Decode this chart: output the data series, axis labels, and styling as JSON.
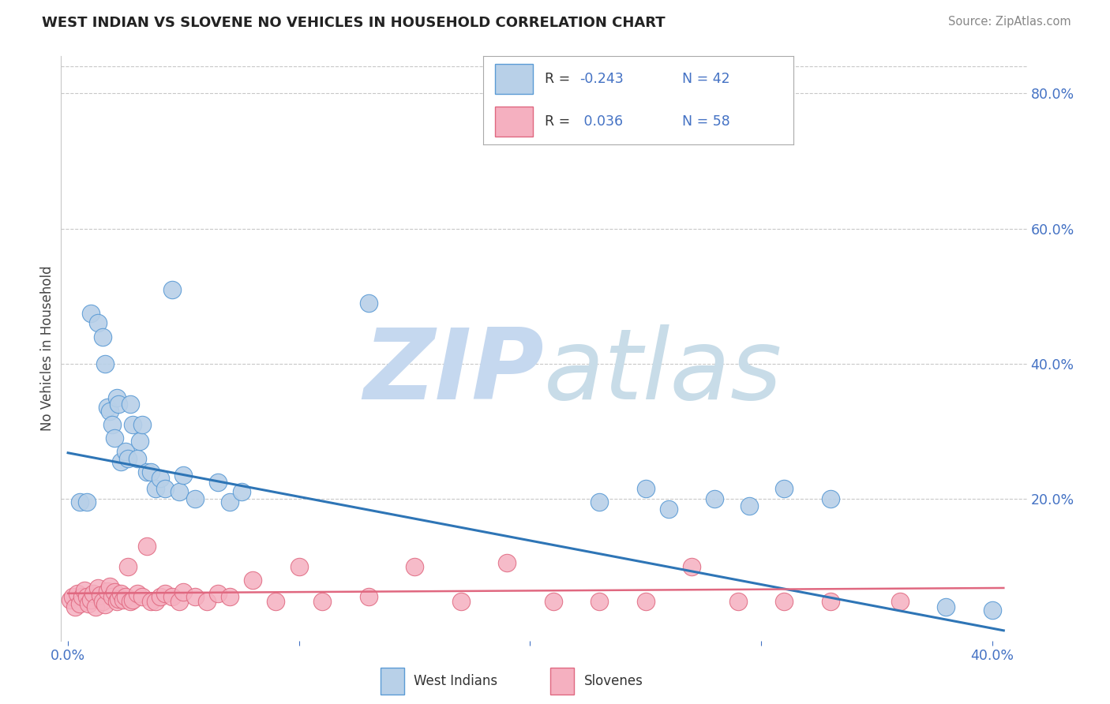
{
  "title": "WEST INDIAN VS SLOVENE NO VEHICLES IN HOUSEHOLD CORRELATION CHART",
  "source": "Source: ZipAtlas.com",
  "ylabel": "No Vehicles in Household",
  "xlim": [
    -0.003,
    0.415
  ],
  "ylim": [
    -0.01,
    0.855
  ],
  "xtick_positions": [
    0.0,
    0.1,
    0.2,
    0.3,
    0.4
  ],
  "ytick_positions": [
    0.0,
    0.2,
    0.4,
    0.6,
    0.8
  ],
  "grid_color": "#c8c8c8",
  "background_color": "#ffffff",
  "west_indian_color": "#b8d0e8",
  "west_indian_edge": "#5b9bd5",
  "slovene_color": "#f5b0c0",
  "slovene_edge": "#e06880",
  "west_indian_line_color": "#2e75b6",
  "slovene_line_color": "#e06880",
  "legend_text_color": "#4472c4",
  "legend_label_color": "#333333",
  "watermark_zip_color": "#ccdaec",
  "watermark_atlas_color": "#c8d8e8",
  "wi_x": [
    0.005,
    0.008,
    0.01,
    0.013,
    0.015,
    0.016,
    0.017,
    0.018,
    0.019,
    0.02,
    0.021,
    0.022,
    0.023,
    0.025,
    0.026,
    0.027,
    0.028,
    0.03,
    0.031,
    0.032,
    0.034,
    0.036,
    0.038,
    0.04,
    0.042,
    0.045,
    0.048,
    0.05,
    0.055,
    0.065,
    0.07,
    0.075,
    0.13,
    0.23,
    0.25,
    0.26,
    0.28,
    0.295,
    0.31,
    0.33,
    0.38,
    0.4
  ],
  "wi_y": [
    0.195,
    0.195,
    0.475,
    0.46,
    0.44,
    0.4,
    0.335,
    0.33,
    0.31,
    0.29,
    0.35,
    0.34,
    0.255,
    0.27,
    0.26,
    0.34,
    0.31,
    0.26,
    0.285,
    0.31,
    0.24,
    0.24,
    0.215,
    0.23,
    0.215,
    0.51,
    0.21,
    0.235,
    0.2,
    0.225,
    0.195,
    0.21,
    0.49,
    0.195,
    0.215,
    0.185,
    0.2,
    0.19,
    0.215,
    0.2,
    0.04,
    0.035
  ],
  "sl_x": [
    0.001,
    0.002,
    0.003,
    0.004,
    0.005,
    0.006,
    0.007,
    0.008,
    0.009,
    0.01,
    0.011,
    0.012,
    0.013,
    0.014,
    0.015,
    0.016,
    0.017,
    0.018,
    0.019,
    0.02,
    0.021,
    0.022,
    0.023,
    0.024,
    0.025,
    0.026,
    0.027,
    0.028,
    0.03,
    0.032,
    0.034,
    0.036,
    0.038,
    0.04,
    0.042,
    0.045,
    0.048,
    0.05,
    0.055,
    0.06,
    0.065,
    0.07,
    0.08,
    0.09,
    0.1,
    0.11,
    0.13,
    0.15,
    0.17,
    0.19,
    0.21,
    0.23,
    0.25,
    0.27,
    0.29,
    0.31,
    0.33,
    0.36
  ],
  "sl_y": [
    0.05,
    0.055,
    0.04,
    0.06,
    0.045,
    0.055,
    0.065,
    0.055,
    0.045,
    0.05,
    0.06,
    0.04,
    0.068,
    0.058,
    0.048,
    0.043,
    0.063,
    0.07,
    0.055,
    0.062,
    0.048,
    0.052,
    0.06,
    0.05,
    0.055,
    0.1,
    0.048,
    0.05,
    0.06,
    0.055,
    0.13,
    0.048,
    0.048,
    0.055,
    0.06,
    0.055,
    0.048,
    0.062,
    0.055,
    0.048,
    0.06,
    0.055,
    0.08,
    0.048,
    0.1,
    0.048,
    0.055,
    0.1,
    0.048,
    0.105,
    0.048,
    0.048,
    0.048,
    0.1,
    0.048,
    0.048,
    0.048,
    0.048
  ],
  "wi_line_x0": 0.0,
  "wi_line_x1": 0.405,
  "wi_line_y0": 0.268,
  "wi_line_y1": 0.005,
  "sl_line_x0": 0.0,
  "sl_line_x1": 0.405,
  "sl_line_y0": 0.06,
  "sl_line_y1": 0.068
}
